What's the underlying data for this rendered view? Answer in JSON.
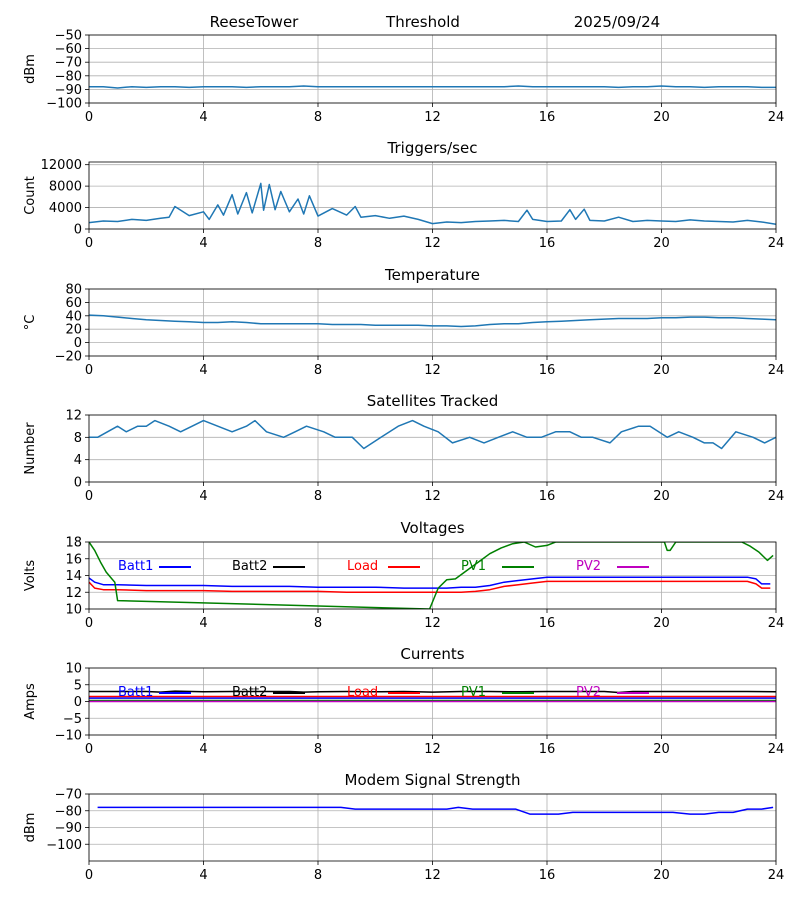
{
  "header": {
    "station": "ReeseTower",
    "label": "Threshold",
    "date": "2025/09/24"
  },
  "chart_data": [
    {
      "id": "threshold",
      "type": "line",
      "title": "",
      "ylabel": "dBm",
      "xlim": [
        0,
        24
      ],
      "ylim": [
        -100,
        -50
      ],
      "xticks": [
        0,
        4,
        8,
        12,
        16,
        20,
        24
      ],
      "yticks": [
        -100,
        -90,
        -80,
        -70,
        -60,
        -50
      ],
      "ytick_labels": [
        "−100",
        "−90",
        "−80",
        "−70",
        "−60",
        "−50"
      ],
      "grid": true,
      "series": [
        {
          "name": "Threshold",
          "color": "#1f77b4",
          "x": [
            0,
            0.5,
            1,
            1.5,
            2,
            2.5,
            3,
            3.5,
            4,
            4.5,
            5,
            5.5,
            6,
            6.5,
            7,
            7.5,
            8,
            8.5,
            9,
            9.5,
            10,
            10.5,
            11,
            11.5,
            12,
            12.5,
            13,
            13.5,
            14,
            14.5,
            15,
            15.5,
            16,
            16.5,
            17,
            17.5,
            18,
            18.5,
            19,
            19.5,
            20,
            20.5,
            21,
            21.5,
            22,
            22.5,
            23,
            23.5,
            24
          ],
          "y": [
            -88,
            -88,
            -89,
            -88,
            -88.5,
            -88,
            -88,
            -88.5,
            -88,
            -88,
            -88,
            -88.5,
            -88,
            -88,
            -88,
            -87.5,
            -88,
            -88,
            -88,
            -88,
            -88,
            -88,
            -88,
            -88,
            -88,
            -88,
            -88,
            -88,
            -88,
            -88,
            -87.5,
            -88,
            -88,
            -88,
            -88,
            -88,
            -88,
            -88.5,
            -88,
            -88,
            -87.5,
            -88,
            -88,
            -88.5,
            -88,
            -88,
            -88,
            -88.5,
            -88.5
          ]
        }
      ]
    },
    {
      "id": "triggers",
      "type": "line",
      "title": "Triggers/sec",
      "ylabel": "Count",
      "xlim": [
        0,
        24
      ],
      "ylim": [
        0,
        12500
      ],
      "xticks": [
        0,
        4,
        8,
        12,
        16,
        20,
        24
      ],
      "yticks": [
        0,
        4000,
        8000,
        12000
      ],
      "ytick_labels": [
        "0",
        "4000",
        "8000",
        "12000"
      ],
      "grid": true,
      "series": [
        {
          "name": "Triggers/sec",
          "color": "#1f77b4",
          "x": [
            0,
            0.5,
            1,
            1.5,
            2,
            2.5,
            2.8,
            3,
            3.5,
            4,
            4.2,
            4.5,
            4.7,
            5,
            5.2,
            5.5,
            5.7,
            6,
            6.1,
            6.3,
            6.5,
            6.7,
            7,
            7.3,
            7.5,
            7.7,
            8,
            8.5,
            9,
            9.3,
            9.5,
            10,
            10.5,
            11,
            11.5,
            12,
            12.5,
            13,
            13.5,
            14,
            14.5,
            15,
            15.3,
            15.5,
            16,
            16.5,
            16.8,
            17,
            17.3,
            17.5,
            18,
            18.5,
            19,
            19.5,
            20,
            20.5,
            21,
            21.5,
            22,
            22.5,
            23,
            23.5,
            24
          ],
          "y": [
            1200,
            1500,
            1400,
            1800,
            1600,
            2000,
            2200,
            4200,
            2500,
            3200,
            1800,
            4500,
            2600,
            6400,
            2800,
            6800,
            3000,
            8500,
            3500,
            8300,
            3600,
            7000,
            3200,
            5600,
            2800,
            6200,
            2400,
            3800,
            2600,
            4200,
            2200,
            2500,
            2000,
            2400,
            1800,
            1000,
            1300,
            1200,
            1400,
            1500,
            1600,
            1400,
            3500,
            1800,
            1400,
            1500,
            3600,
            1800,
            3700,
            1600,
            1500,
            2200,
            1400,
            1600,
            1500,
            1400,
            1700,
            1500,
            1400,
            1300,
            1600,
            1300,
            900
          ]
        }
      ]
    },
    {
      "id": "temperature",
      "type": "line",
      "title": "Temperature",
      "ylabel": "°C",
      "xlim": [
        0,
        24
      ],
      "ylim": [
        -20,
        80
      ],
      "xticks": [
        0,
        4,
        8,
        12,
        16,
        20,
        24
      ],
      "yticks": [
        -20,
        0,
        20,
        40,
        60,
        80
      ],
      "ytick_labels": [
        "−20",
        "0",
        "20",
        "40",
        "60",
        "80"
      ],
      "grid": true,
      "series": [
        {
          "name": "Temperature",
          "color": "#1f77b4",
          "x": [
            0,
            0.5,
            1,
            1.5,
            2,
            2.5,
            3,
            3.5,
            4,
            4.5,
            5,
            5.5,
            6,
            6.5,
            7,
            7.5,
            8,
            8.5,
            9,
            9.5,
            10,
            10.5,
            11,
            11.5,
            12,
            12.5,
            13,
            13.5,
            14,
            14.5,
            15,
            15.5,
            16,
            16.5,
            17,
            17.5,
            18,
            18.5,
            19,
            19.5,
            20,
            20.5,
            21,
            21.5,
            22,
            22.5,
            23,
            23.5,
            24
          ],
          "y": [
            41,
            40,
            38,
            36,
            34,
            33,
            32,
            31,
            30,
            30,
            31,
            30,
            28,
            28,
            28,
            28,
            28,
            27,
            27,
            27,
            26,
            26,
            26,
            26,
            25,
            25,
            24,
            25,
            27,
            28,
            28,
            30,
            31,
            32,
            33,
            34,
            35,
            36,
            36,
            36,
            37,
            37,
            38,
            38,
            37,
            37,
            36,
            35,
            34
          ]
        }
      ]
    },
    {
      "id": "satellites",
      "type": "line",
      "title": "Satellites Tracked",
      "ylabel": "Number",
      "xlim": [
        0,
        24
      ],
      "ylim": [
        0,
        12
      ],
      "xticks": [
        0,
        4,
        8,
        12,
        16,
        20,
        24
      ],
      "yticks": [
        0,
        4,
        8,
        12
      ],
      "ytick_labels": [
        "0",
        "4",
        "8",
        "12"
      ],
      "grid": true,
      "series": [
        {
          "name": "Satellites",
          "color": "#1f77b4",
          "x": [
            0,
            0.3,
            1,
            1.3,
            1.7,
            2,
            2.3,
            2.8,
            3.2,
            3.6,
            4,
            4.5,
            5,
            5.5,
            5.8,
            6.2,
            6.8,
            7.2,
            7.6,
            8.2,
            8.6,
            9.2,
            9.6,
            10.2,
            10.8,
            11.3,
            11.7,
            12.2,
            12.7,
            13.3,
            13.8,
            14.3,
            14.8,
            15.3,
            15.8,
            16.3,
            16.8,
            17.2,
            17.6,
            18.2,
            18.6,
            19.2,
            19.6,
            20.2,
            20.6,
            21.1,
            21.5,
            21.8,
            22.1,
            22.6,
            23.2,
            23.6,
            24
          ],
          "y": [
            8,
            8,
            10,
            9,
            10,
            10,
            11,
            10,
            9,
            10,
            11,
            10,
            9,
            10,
            11,
            9,
            8,
            9,
            10,
            9,
            8,
            8,
            6,
            8,
            10,
            11,
            10,
            9,
            7,
            8,
            7,
            8,
            9,
            8,
            8,
            9,
            9,
            8,
            8,
            7,
            9,
            10,
            10,
            8,
            9,
            8,
            7,
            7,
            6,
            9,
            8,
            7,
            8
          ]
        }
      ]
    },
    {
      "id": "voltages",
      "type": "line",
      "title": "Voltages",
      "ylabel": "Volts",
      "xlim": [
        0,
        24
      ],
      "ylim": [
        10,
        18
      ],
      "xticks": [
        0,
        4,
        8,
        12,
        16,
        20,
        24
      ],
      "yticks": [
        10,
        12,
        14,
        16,
        18
      ],
      "ytick_labels": [
        "10",
        "12",
        "14",
        "16",
        "18"
      ],
      "grid": true,
      "legend": [
        "Batt1",
        "Batt2",
        "Load",
        "PV1",
        "PV2"
      ],
      "series": [
        {
          "name": "Batt1",
          "color": "#0000ff",
          "x": [
            0,
            0.2,
            0.5,
            1,
            2,
            3,
            4,
            5,
            6,
            7,
            8,
            9,
            10,
            11,
            12,
            12.5,
            13,
            13.5,
            14,
            14.5,
            15,
            15.5,
            16,
            17,
            18,
            19,
            20,
            21,
            22,
            23,
            23.3,
            23.5,
            23.8
          ],
          "y": [
            13.7,
            13.2,
            12.9,
            12.9,
            12.8,
            12.8,
            12.8,
            12.7,
            12.7,
            12.7,
            12.6,
            12.6,
            12.6,
            12.5,
            12.5,
            12.5,
            12.6,
            12.6,
            12.8,
            13.2,
            13.4,
            13.6,
            13.8,
            13.8,
            13.8,
            13.8,
            13.8,
            13.8,
            13.8,
            13.8,
            13.6,
            13.0,
            13.0
          ]
        },
        {
          "name": "Batt2",
          "color": "#000000",
          "x": [],
          "y": []
        },
        {
          "name": "Load",
          "color": "#ff0000",
          "x": [
            0,
            0.2,
            0.5,
            1,
            2,
            3,
            4,
            5,
            6,
            7,
            8,
            9,
            10,
            11,
            12,
            12.5,
            13,
            13.5,
            14,
            14.5,
            15,
            15.5,
            16,
            17,
            18,
            19,
            20,
            21,
            22,
            23,
            23.3,
            23.5,
            23.8
          ],
          "y": [
            13.2,
            12.5,
            12.3,
            12.3,
            12.2,
            12.2,
            12.2,
            12.1,
            12.1,
            12.1,
            12.1,
            12.0,
            12.0,
            12.0,
            12.0,
            12.0,
            12.0,
            12.1,
            12.3,
            12.7,
            12.9,
            13.1,
            13.3,
            13.3,
            13.3,
            13.3,
            13.3,
            13.3,
            13.3,
            13.3,
            13.0,
            12.5,
            12.5
          ]
        },
        {
          "name": "PV1",
          "color": "#008000",
          "x": [
            0,
            0.2,
            0.4,
            0.6,
            0.8,
            0.9,
            1.0,
            11.9,
            12.2,
            12.5,
            12.8,
            13.2,
            13.6,
            14.0,
            14.4,
            14.8,
            15.2,
            15.6,
            16.0,
            16.3,
            20.0,
            20.1,
            20.2,
            20.3,
            20.5,
            20.8,
            21.5,
            22.2,
            22.8,
            23.1,
            23.4,
            23.7,
            23.9
          ],
          "y": [
            18,
            17.0,
            15.6,
            14.4,
            13.6,
            13.2,
            11.0,
            10.0,
            12.5,
            13.5,
            13.6,
            14.6,
            15.6,
            16.6,
            17.3,
            17.8,
            18.0,
            17.4,
            17.6,
            18.0,
            18.0,
            18.0,
            17.0,
            17.0,
            18.0,
            18.0,
            18.0,
            18.0,
            18.0,
            17.5,
            16.8,
            15.8,
            16.4
          ]
        },
        {
          "name": "PV2",
          "color": "#bf00bf",
          "x": [],
          "y": []
        }
      ]
    },
    {
      "id": "currents",
      "type": "line",
      "title": "Currents",
      "ylabel": "Amps",
      "xlim": [
        0,
        24
      ],
      "ylim": [
        -10,
        10
      ],
      "xticks": [
        0,
        4,
        8,
        12,
        16,
        20,
        24
      ],
      "yticks": [
        -10,
        -5,
        0,
        5,
        10
      ],
      "ytick_labels": [
        "−10",
        "−5",
        "0",
        "5",
        "10"
      ],
      "grid": true,
      "legend": [
        "Batt1",
        "Batt2",
        "Load",
        "PV1",
        "PV2"
      ],
      "series": [
        {
          "name": "Batt2",
          "color": "#000000",
          "x": [
            0,
            1,
            2,
            2.5,
            3,
            4,
            5,
            6,
            7,
            7.5,
            8,
            9,
            10,
            11,
            12,
            13,
            14,
            15,
            16,
            17,
            18,
            18.5,
            19,
            20,
            21,
            22,
            23,
            24
          ],
          "y": [
            3.0,
            3.0,
            3.0,
            2.8,
            3.1,
            2.9,
            3.0,
            3.0,
            3.0,
            2.8,
            2.9,
            3.0,
            2.9,
            3.0,
            2.8,
            3.0,
            3.0,
            2.9,
            3.0,
            3.0,
            3.0,
            2.7,
            3.0,
            3.0,
            3.0,
            3.0,
            3.0,
            2.9
          ]
        },
        {
          "name": "Load",
          "color": "#ff0000",
          "x": [
            0,
            24
          ],
          "y": [
            1.5,
            1.5
          ]
        },
        {
          "name": "Batt1",
          "color": "#0000ff",
          "x": [
            0,
            24
          ],
          "y": [
            1.0,
            1.0
          ]
        },
        {
          "name": "PV1",
          "color": "#008000",
          "x": [
            0,
            24
          ],
          "y": [
            0.3,
            0.3
          ]
        },
        {
          "name": "PV2",
          "color": "#bf00bf",
          "x": [
            0,
            24
          ],
          "y": [
            0.0,
            0.0
          ]
        }
      ]
    },
    {
      "id": "modem",
      "type": "line",
      "title": "Modem Signal Strength",
      "ylabel": "dBm",
      "xlim": [
        0,
        24
      ],
      "ylim": [
        -110,
        -70
      ],
      "xticks": [
        0,
        4,
        8,
        12,
        16,
        20,
        24
      ],
      "yticks": [
        -100,
        -90,
        -80,
        -70
      ],
      "ytick_labels": [
        "−100",
        "−90",
        "−80",
        "−70"
      ],
      "grid": true,
      "series": [
        {
          "name": "Modem",
          "color": "#0000ff",
          "x": [
            0.3,
            1,
            2,
            3,
            4,
            5,
            6,
            7,
            8,
            8.8,
            9.3,
            10,
            11,
            12,
            12.5,
            12.9,
            13.4,
            14,
            14.5,
            14.9,
            15.4,
            16,
            16.4,
            16.9,
            17.5,
            18,
            19,
            20,
            20.4,
            21,
            21.5,
            22,
            22.5,
            23,
            23.5,
            23.9
          ],
          "y": [
            -78,
            -78,
            -78,
            -78,
            -78,
            -78,
            -78,
            -78,
            -78,
            -78,
            -79,
            -79,
            -79,
            -79,
            -79,
            -78,
            -79,
            -79,
            -79,
            -79,
            -82,
            -82,
            -82,
            -81,
            -81,
            -81,
            -81,
            -81,
            -81,
            -82,
            -82,
            -81,
            -81,
            -79,
            -79,
            -78
          ]
        }
      ]
    }
  ]
}
